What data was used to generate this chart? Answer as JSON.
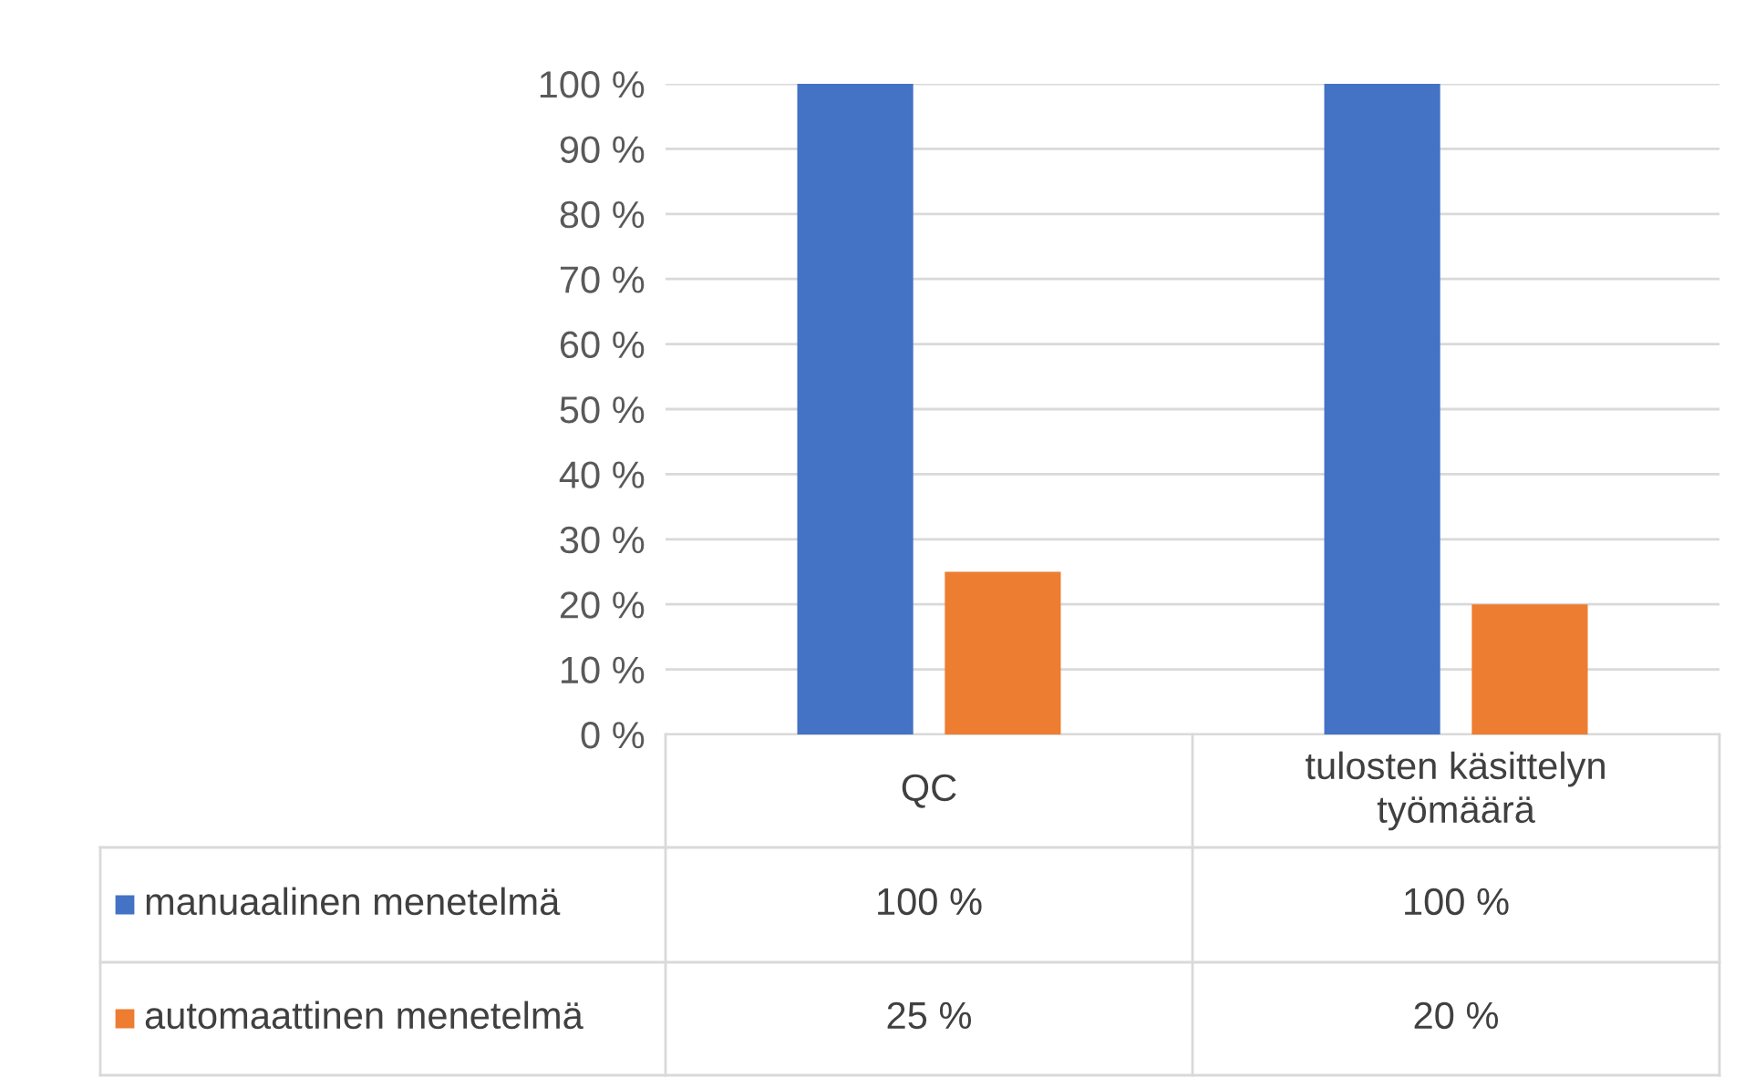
{
  "chart_data": {
    "type": "bar",
    "categories": [
      "QC",
      "tulosten käsittelyn\ntyömäärä"
    ],
    "series": [
      {
        "name": "manuaalinen menetelmä",
        "color": "#4472c4",
        "values": [
          100,
          100
        ],
        "value_labels": [
          "100 %",
          "100 %"
        ]
      },
      {
        "name": "automaattinen menetelmä",
        "color": "#ed7d31",
        "values": [
          25,
          20
        ],
        "value_labels": [
          "25 %",
          "20 %"
        ]
      }
    ],
    "ylim": [
      0,
      100
    ],
    "yticks": [
      {
        "value": 0,
        "label": "0 %"
      },
      {
        "value": 10,
        "label": "10 %"
      },
      {
        "value": 20,
        "label": "20 %"
      },
      {
        "value": 30,
        "label": "30 %"
      },
      {
        "value": 40,
        "label": "40 %"
      },
      {
        "value": 50,
        "label": "50 %"
      },
      {
        "value": 60,
        "label": "60 %"
      },
      {
        "value": 70,
        "label": "70 %"
      },
      {
        "value": 80,
        "label": "80 %"
      },
      {
        "value": 90,
        "label": "90 %"
      },
      {
        "value": 100,
        "label": "100 %"
      }
    ],
    "grid": "y",
    "legend": "bottom left"
  }
}
